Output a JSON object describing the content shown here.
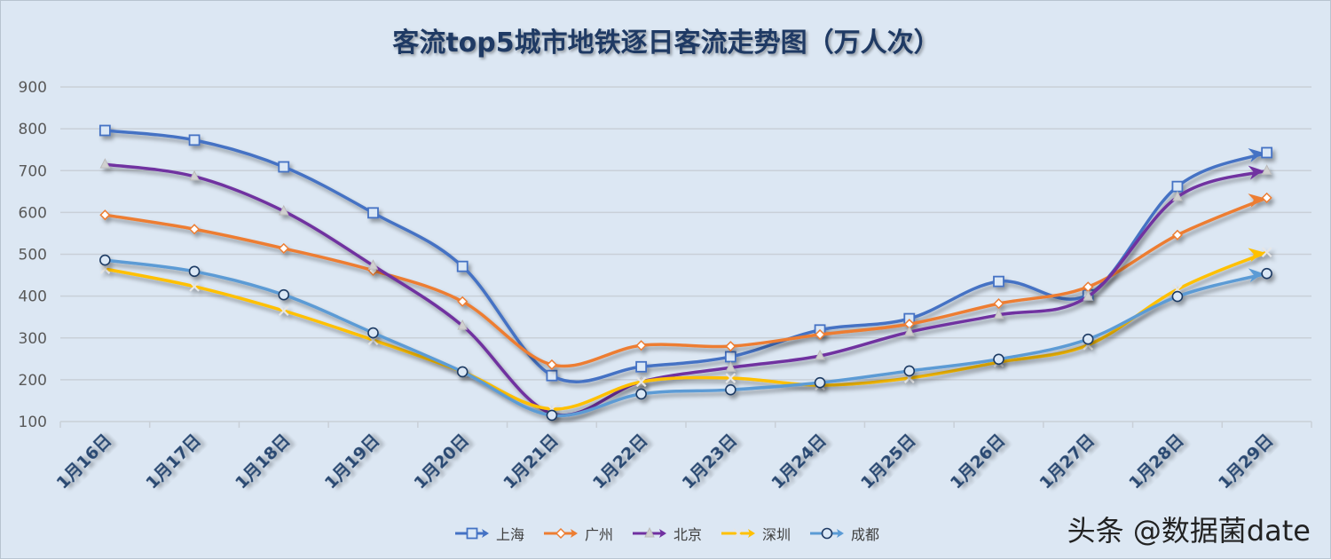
{
  "chart_data": {
    "type": "line",
    "title": "客流top5城市地铁逐日客流走势图（万人次）",
    "categories": [
      "1月16日",
      "1月17日",
      "1月18日",
      "1月19日",
      "1月20日",
      "1月21日",
      "1月22日",
      "1月23日",
      "1月24日",
      "1月25日",
      "1月26日",
      "1月27日",
      "1月28日",
      "1月29日"
    ],
    "ylim": [
      100,
      900
    ],
    "yticks": [
      100,
      200,
      300,
      400,
      500,
      600,
      700,
      800,
      900
    ],
    "grid": true,
    "legend": "bottom",
    "smooth": true,
    "series": [
      {
        "name": "上海",
        "color": "#4472c4",
        "marker": "square",
        "values": [
          796,
          773,
          709,
          599,
          471,
          210,
          231,
          255,
          319,
          346,
          435,
          403,
          662,
          743
        ]
      },
      {
        "name": "广州",
        "color": "#ed7d31",
        "marker": "diamond",
        "values": [
          594,
          560,
          514,
          461,
          387,
          236,
          282,
          280,
          308,
          333,
          382,
          422,
          546,
          635
        ]
      },
      {
        "name": "北京",
        "color": "#7030a0",
        "marker": "triangle",
        "values": [
          715,
          686,
          603,
          473,
          329,
          119,
          195,
          229,
          257,
          314,
          355,
          399,
          637,
          700
        ]
      },
      {
        "name": "深圳",
        "color": "#ffc000",
        "marker": "x",
        "values": [
          465,
          423,
          365,
          295,
          219,
          130,
          195,
          204,
          187,
          204,
          242,
          283,
          416,
          505
        ]
      },
      {
        "name": "成都",
        "color": "#5b9bd5",
        "marker": "circle",
        "values": [
          486,
          459,
          403,
          312,
          219,
          115,
          166,
          176,
          193,
          221,
          249,
          297,
          399,
          454
        ]
      }
    ]
  },
  "watermark": "头条 @数据菌date"
}
